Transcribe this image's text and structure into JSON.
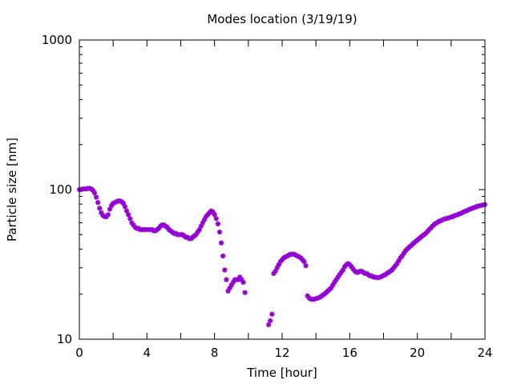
{
  "chart_data": {
    "type": "scatter",
    "title": "Modes location (3/19/19)",
    "xlabel": "Time [hour]",
    "ylabel": "Particle size [nm]",
    "xlim": [
      0,
      24
    ],
    "ylim": [
      10,
      1000
    ],
    "y_scale": "log",
    "grid": false,
    "legend": "none",
    "x_ticks": [
      "0",
      "4",
      "8",
      "12",
      "16",
      "20",
      "24"
    ],
    "y_ticks": [
      "10",
      "100",
      "1000"
    ],
    "marker_color": "#9400d3",
    "series": [
      {
        "points": [
          [
            0.0,
            100
          ],
          [
            0.1,
            100
          ],
          [
            0.2,
            101
          ],
          [
            0.3,
            101
          ],
          [
            0.4,
            101
          ],
          [
            0.5,
            102
          ],
          [
            0.6,
            102
          ],
          [
            0.7,
            101
          ],
          [
            0.8,
            99
          ],
          [
            0.9,
            95
          ],
          [
            1.0,
            89
          ],
          [
            1.1,
            82
          ],
          [
            1.2,
            75
          ],
          [
            1.3,
            70
          ],
          [
            1.4,
            67
          ],
          [
            1.5,
            66
          ],
          [
            1.6,
            66
          ],
          [
            1.7,
            68
          ],
          [
            1.8,
            74
          ],
          [
            1.9,
            78
          ],
          [
            2.0,
            81
          ],
          [
            2.1,
            82
          ],
          [
            2.2,
            83
          ],
          [
            2.3,
            84
          ],
          [
            2.4,
            84
          ],
          [
            2.5,
            83
          ],
          [
            2.6,
            81
          ],
          [
            2.7,
            77
          ],
          [
            2.8,
            72
          ],
          [
            2.9,
            68
          ],
          [
            3.0,
            64
          ],
          [
            3.1,
            60
          ],
          [
            3.2,
            58
          ],
          [
            3.3,
            56
          ],
          [
            3.4,
            55
          ],
          [
            3.5,
            55
          ],
          [
            3.6,
            54
          ],
          [
            3.7,
            54
          ],
          [
            3.8,
            54
          ],
          [
            3.9,
            54
          ],
          [
            4.0,
            54
          ],
          [
            4.1,
            54
          ],
          [
            4.2,
            54
          ],
          [
            4.3,
            54
          ],
          [
            4.4,
            53
          ],
          [
            4.5,
            53
          ],
          [
            4.6,
            54
          ],
          [
            4.7,
            55
          ],
          [
            4.8,
            57
          ],
          [
            4.9,
            58
          ],
          [
            5.0,
            58
          ],
          [
            5.1,
            57
          ],
          [
            5.2,
            56
          ],
          [
            5.3,
            54
          ],
          [
            5.4,
            53
          ],
          [
            5.5,
            52
          ],
          [
            5.6,
            51
          ],
          [
            5.7,
            51
          ],
          [
            5.8,
            50
          ],
          [
            5.9,
            50
          ],
          [
            6.0,
            50
          ],
          [
            6.1,
            50
          ],
          [
            6.2,
            49
          ],
          [
            6.3,
            48
          ],
          [
            6.4,
            48
          ],
          [
            6.5,
            47
          ],
          [
            6.6,
            47
          ],
          [
            6.7,
            48
          ],
          [
            6.8,
            49
          ],
          [
            6.9,
            50
          ],
          [
            7.0,
            52
          ],
          [
            7.1,
            54
          ],
          [
            7.2,
            57
          ],
          [
            7.3,
            60
          ],
          [
            7.4,
            63
          ],
          [
            7.5,
            66
          ],
          [
            7.6,
            68
          ],
          [
            7.7,
            70
          ],
          [
            7.8,
            72
          ],
          [
            7.9,
            71
          ],
          [
            8.0,
            68
          ],
          [
            8.1,
            64
          ],
          [
            8.2,
            59
          ],
          [
            8.3,
            52
          ],
          [
            8.4,
            44
          ],
          [
            8.5,
            36
          ],
          [
            8.6,
            29
          ],
          [
            8.7,
            25
          ],
          [
            8.8,
            21
          ],
          [
            8.9,
            22
          ],
          [
            9.0,
            23
          ],
          [
            9.1,
            24
          ],
          [
            9.2,
            25
          ],
          [
            9.3,
            25
          ],
          [
            9.4,
            25
          ],
          [
            9.5,
            26
          ],
          [
            9.6,
            25
          ],
          [
            9.7,
            24
          ],
          [
            9.8,
            20.5
          ],
          [
            11.2,
            12.5
          ],
          [
            11.3,
            13.3
          ],
          [
            11.4,
            14.7
          ],
          [
            11.5,
            27.5
          ],
          [
            11.6,
            28.5
          ],
          [
            11.7,
            30
          ],
          [
            11.8,
            31.5
          ],
          [
            11.9,
            33
          ],
          [
            12.0,
            34
          ],
          [
            12.1,
            35
          ],
          [
            12.2,
            35.5
          ],
          [
            12.3,
            36
          ],
          [
            12.4,
            36.5
          ],
          [
            12.5,
            37
          ],
          [
            12.6,
            37
          ],
          [
            12.7,
            37
          ],
          [
            12.8,
            36.5
          ],
          [
            12.9,
            36
          ],
          [
            13.0,
            35.5
          ],
          [
            13.1,
            35
          ],
          [
            13.2,
            34
          ],
          [
            13.3,
            33
          ],
          [
            13.4,
            31
          ],
          [
            13.5,
            19.5
          ],
          [
            13.6,
            18.8
          ],
          [
            13.7,
            18.5
          ],
          [
            13.8,
            18.5
          ],
          [
            13.9,
            18.5
          ],
          [
            14.0,
            18.7
          ],
          [
            14.1,
            18.8
          ],
          [
            14.2,
            19
          ],
          [
            14.3,
            19.3
          ],
          [
            14.4,
            19.7
          ],
          [
            14.5,
            20
          ],
          [
            14.6,
            20.5
          ],
          [
            14.7,
            21
          ],
          [
            14.8,
            21.5
          ],
          [
            14.9,
            22
          ],
          [
            15.0,
            23
          ],
          [
            15.1,
            24
          ],
          [
            15.2,
            25
          ],
          [
            15.3,
            26
          ],
          [
            15.4,
            27
          ],
          [
            15.5,
            28
          ],
          [
            15.6,
            29
          ],
          [
            15.7,
            30.5
          ],
          [
            15.8,
            31.5
          ],
          [
            15.9,
            32
          ],
          [
            16.0,
            31.5
          ],
          [
            16.1,
            30.5
          ],
          [
            16.2,
            29.5
          ],
          [
            16.3,
            28.5
          ],
          [
            16.4,
            28
          ],
          [
            16.5,
            28
          ],
          [
            16.6,
            28.5
          ],
          [
            16.7,
            28.5
          ],
          [
            16.8,
            28
          ],
          [
            16.9,
            27.5
          ],
          [
            17.0,
            27.5
          ],
          [
            17.1,
            27
          ],
          [
            17.2,
            26.5
          ],
          [
            17.3,
            26.5
          ],
          [
            17.4,
            26
          ],
          [
            17.5,
            26
          ],
          [
            17.6,
            25.8
          ],
          [
            17.7,
            25.8
          ],
          [
            17.8,
            26
          ],
          [
            17.9,
            26.3
          ],
          [
            18.0,
            26.7
          ],
          [
            18.1,
            27
          ],
          [
            18.2,
            27.5
          ],
          [
            18.3,
            28
          ],
          [
            18.4,
            28.5
          ],
          [
            18.5,
            29
          ],
          [
            18.6,
            30
          ],
          [
            18.7,
            31
          ],
          [
            18.8,
            32
          ],
          [
            18.9,
            33.5
          ],
          [
            19.0,
            35
          ],
          [
            19.1,
            36
          ],
          [
            19.2,
            37.5
          ],
          [
            19.3,
            39
          ],
          [
            19.4,
            40
          ],
          [
            19.5,
            41
          ],
          [
            19.6,
            42
          ],
          [
            19.7,
            43
          ],
          [
            19.8,
            44
          ],
          [
            19.9,
            45
          ],
          [
            20.0,
            46
          ],
          [
            20.1,
            47
          ],
          [
            20.2,
            48
          ],
          [
            20.3,
            49
          ],
          [
            20.4,
            50
          ],
          [
            20.5,
            51
          ],
          [
            20.6,
            52.5
          ],
          [
            20.7,
            54
          ],
          [
            20.8,
            55.5
          ],
          [
            20.9,
            57
          ],
          [
            21.0,
            58.5
          ],
          [
            21.1,
            59.5
          ],
          [
            21.2,
            60.5
          ],
          [
            21.3,
            61.5
          ],
          [
            21.4,
            62
          ],
          [
            21.5,
            63
          ],
          [
            21.6,
            63.5
          ],
          [
            21.7,
            64
          ],
          [
            21.8,
            64.5
          ],
          [
            21.9,
            65
          ],
          [
            22.0,
            65.5
          ],
          [
            22.1,
            66
          ],
          [
            22.2,
            67
          ],
          [
            22.3,
            67.5
          ],
          [
            22.4,
            68
          ],
          [
            22.5,
            69
          ],
          [
            22.6,
            69.5
          ],
          [
            22.7,
            70.5
          ],
          [
            22.8,
            71.5
          ],
          [
            22.9,
            72
          ],
          [
            23.0,
            73
          ],
          [
            23.1,
            74
          ],
          [
            23.2,
            74.5
          ],
          [
            23.3,
            75.5
          ],
          [
            23.4,
            76
          ],
          [
            23.5,
            77
          ],
          [
            23.6,
            77.5
          ],
          [
            23.7,
            78
          ],
          [
            23.8,
            78.5
          ],
          [
            23.9,
            79
          ],
          [
            24.0,
            79.5
          ]
        ]
      }
    ]
  }
}
